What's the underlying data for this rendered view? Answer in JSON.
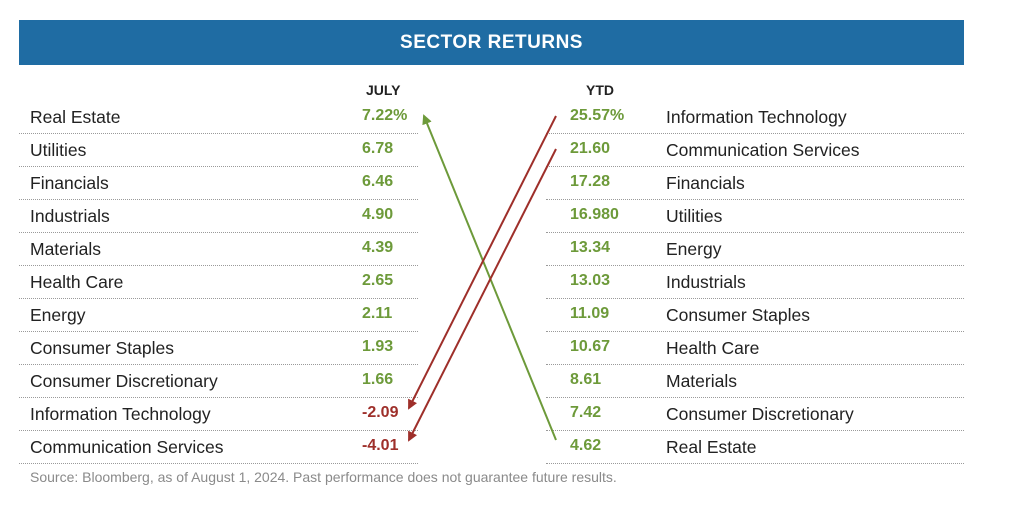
{
  "title": "SECTOR RETURNS",
  "columns": {
    "july": "JULY",
    "ytd": "YTD"
  },
  "july": [
    {
      "sector": "Real Estate",
      "value": "7.22%",
      "sign": "pos"
    },
    {
      "sector": "Utilities",
      "value": "6.78",
      "sign": "pos"
    },
    {
      "sector": "Financials",
      "value": "6.46",
      "sign": "pos"
    },
    {
      "sector": "Industrials",
      "value": "4.90",
      "sign": "pos"
    },
    {
      "sector": "Materials",
      "value": "4.39",
      "sign": "pos"
    },
    {
      "sector": "Health Care",
      "value": "2.65",
      "sign": "pos"
    },
    {
      "sector": "Energy",
      "value": "2.11",
      "sign": "pos"
    },
    {
      "sector": "Consumer Staples",
      "value": "1.93",
      "sign": "pos"
    },
    {
      "sector": "Consumer Discretionary",
      "value": "1.66",
      "sign": "pos"
    },
    {
      "sector": "Information Technology",
      "value": "-2.09",
      "sign": "neg"
    },
    {
      "sector": "Communication Services",
      "value": "-4.01",
      "sign": "neg"
    }
  ],
  "ytd": [
    {
      "sector": "Information Technology",
      "value": "25.57%",
      "sign": "pos"
    },
    {
      "sector": "Communication Services",
      "value": "21.60",
      "sign": "pos"
    },
    {
      "sector": "Financials",
      "value": "17.28",
      "sign": "pos"
    },
    {
      "sector": "Utilities",
      "value": "16.980",
      "sign": "pos"
    },
    {
      "sector": "Energy",
      "value": "13.34",
      "sign": "pos"
    },
    {
      "sector": "Industrials",
      "value": "13.03",
      "sign": "pos"
    },
    {
      "sector": "Consumer Staples",
      "value": "11.09",
      "sign": "pos"
    },
    {
      "sector": "Health Care",
      "value": "10.67",
      "sign": "pos"
    },
    {
      "sector": "Materials",
      "value": "8.61",
      "sign": "pos"
    },
    {
      "sector": "Consumer Discretionary",
      "value": "7.42",
      "sign": "pos"
    },
    {
      "sector": "Real Estate",
      "value": "4.62",
      "sign": "pos"
    }
  ],
  "arrows": [
    {
      "from": "Real Estate",
      "direction": "up",
      "color": "#6d9a3a"
    },
    {
      "from": "Information Technology",
      "direction": "down",
      "color": "#9e2f2a"
    },
    {
      "from": "Communication Services",
      "direction": "down",
      "color": "#9e2f2a"
    }
  ],
  "source": "Source: Bloomberg, as of August 1, 2024. Past performance does not guarantee future results.",
  "colors": {
    "header": "#1f6ca3",
    "positive": "#6d9a3a",
    "negative": "#9e2f2a"
  }
}
